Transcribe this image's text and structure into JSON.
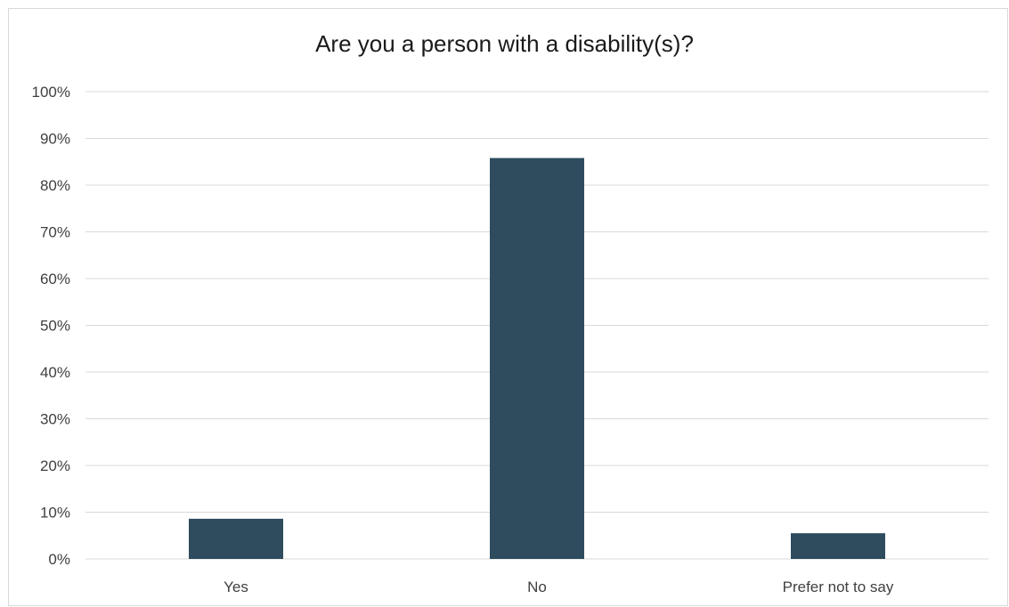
{
  "chart_data": {
    "type": "bar",
    "title": "Are you a person with a disability(s)?",
    "xlabel": "",
    "ylabel": "",
    "categories": [
      "Yes",
      "No",
      "Prefer not to say"
    ],
    "values": [
      8.6,
      85.8,
      5.5
    ],
    "ylim": [
      0,
      100
    ],
    "y_ticks": [
      "0%",
      "10%",
      "20%",
      "30%",
      "40%",
      "50%",
      "60%",
      "70%",
      "80%",
      "90%",
      "100%"
    ],
    "grid": true,
    "legend": "none",
    "bar_color": "#2e4c5e"
  }
}
